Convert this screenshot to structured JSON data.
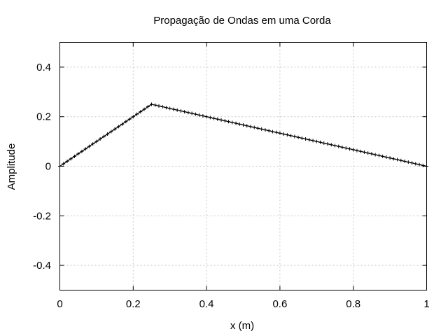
{
  "chart_data": {
    "type": "line",
    "title": "Propagação de Ondas em uma Corda",
    "xlabel": "x (m)",
    "ylabel": "Amplitude",
    "xlim": [
      0,
      1
    ],
    "ylim": [
      -0.5,
      0.5
    ],
    "xticks": [
      0,
      0.2,
      0.4,
      0.6,
      0.8,
      1
    ],
    "xtick_labels": [
      "0",
      "0.2",
      "0.4",
      "0.6",
      "0.8",
      "1"
    ],
    "yticks": [
      -0.4,
      -0.2,
      0,
      0.2,
      0.4
    ],
    "ytick_labels": [
      "-0.4",
      "-0.2",
      "0",
      "0.2",
      "0.4"
    ],
    "grid": true,
    "legend": false,
    "series": [
      {
        "color": "#000000",
        "marker": "plus",
        "x": [
          0,
          0.01,
          0.02,
          0.03,
          0.04,
          0.05,
          0.06,
          0.07,
          0.08,
          0.09,
          0.1,
          0.11,
          0.12,
          0.13,
          0.14,
          0.15,
          0.16,
          0.17,
          0.18,
          0.19,
          0.2,
          0.21,
          0.22,
          0.23,
          0.24,
          0.25,
          0.26,
          0.27,
          0.28,
          0.29,
          0.3,
          0.31,
          0.32,
          0.33,
          0.34,
          0.35,
          0.36,
          0.37,
          0.38,
          0.39,
          0.4,
          0.41,
          0.42,
          0.43,
          0.44,
          0.45,
          0.46,
          0.47,
          0.48,
          0.49,
          0.5,
          0.51,
          0.52,
          0.53,
          0.54,
          0.55,
          0.56,
          0.57,
          0.58,
          0.59,
          0.6,
          0.61,
          0.62,
          0.63,
          0.64,
          0.65,
          0.66,
          0.67,
          0.68,
          0.69,
          0.7,
          0.71,
          0.72,
          0.73,
          0.74,
          0.75,
          0.76,
          0.77,
          0.78,
          0.79,
          0.8,
          0.81,
          0.82,
          0.83,
          0.84,
          0.85,
          0.86,
          0.87,
          0.88,
          0.89,
          0.9,
          0.91,
          0.92,
          0.93,
          0.94,
          0.95,
          0.96,
          0.97,
          0.98,
          0.99,
          1
        ],
        "y": [
          0,
          0.01,
          0.02,
          0.03,
          0.04,
          0.05,
          0.06,
          0.07,
          0.08,
          0.09,
          0.1,
          0.11,
          0.12,
          0.13,
          0.14,
          0.15,
          0.16,
          0.17,
          0.18,
          0.19,
          0.2,
          0.21,
          0.22,
          0.23,
          0.24,
          0.25,
          0.2467,
          0.2433,
          0.24,
          0.2367,
          0.2333,
          0.23,
          0.2267,
          0.2233,
          0.22,
          0.2167,
          0.2133,
          0.21,
          0.2067,
          0.2033,
          0.2,
          0.1967,
          0.1933,
          0.19,
          0.1867,
          0.1833,
          0.18,
          0.1767,
          0.1733,
          0.17,
          0.1667,
          0.1633,
          0.16,
          0.1567,
          0.1533,
          0.15,
          0.1467,
          0.1433,
          0.14,
          0.1367,
          0.1333,
          0.13,
          0.1267,
          0.1233,
          0.12,
          0.1167,
          0.1133,
          0.11,
          0.1067,
          0.1033,
          0.1,
          0.0967,
          0.0933,
          0.09,
          0.0867,
          0.0833,
          0.08,
          0.0767,
          0.0733,
          0.07,
          0.0667,
          0.0633,
          0.06,
          0.0567,
          0.0533,
          0.05,
          0.0467,
          0.0433,
          0.04,
          0.0367,
          0.0333,
          0.03,
          0.0267,
          0.0233,
          0.02,
          0.0167,
          0.0133,
          0.01,
          0.0067,
          0.0033,
          0
        ]
      }
    ]
  }
}
